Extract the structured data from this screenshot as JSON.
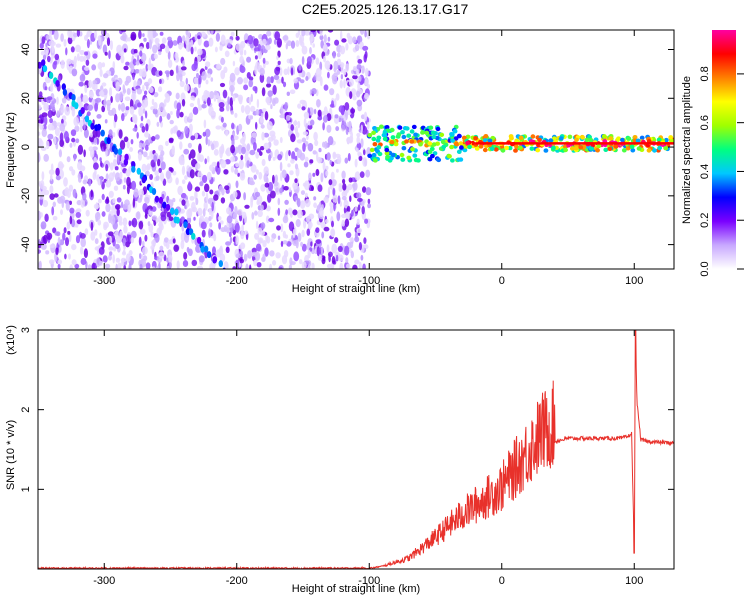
{
  "title": "C2E5.2025.126.13.17.G17",
  "chart_data": [
    {
      "type": "heatmap",
      "xlabel": "Height of straight line (km)",
      "ylabel": "Frequency (Hz)",
      "xlim": [
        -350,
        130
      ],
      "ylim": [
        -50,
        48
      ],
      "xticks": [
        -300,
        -200,
        -100,
        0,
        100
      ],
      "yticks": [
        -40,
        -20,
        0,
        20,
        40
      ],
      "colorbar": {
        "label": "Normalized spectral amplitude",
        "range": [
          0,
          0.98
        ],
        "ticks": [
          0.0,
          0.2,
          0.4,
          0.6,
          0.8
        ],
        "colors": [
          "#ffffff",
          "#c8a8ff",
          "#7a00ff",
          "#0000ff",
          "#00c8ff",
          "#00ff80",
          "#a0ff00",
          "#ffff00",
          "#ff8000",
          "#ff0000",
          "#ff00a0"
        ]
      },
      "noise_region_x": [
        -350,
        -100
      ],
      "diagonal_trace": {
        "x": [
          -350,
          -210
        ],
        "y": [
          35,
          -50
        ]
      },
      "horizontal_band": {
        "x": [
          -100,
          130
        ],
        "y": 1.5
      }
    },
    {
      "type": "line",
      "xlabel": "Height of straight line (km)",
      "ylabel": "SNR (10 * v/v)",
      "y_multiplier_label": "(x10⁴)",
      "xlim": [
        -350,
        130
      ],
      "ylim": [
        0,
        3
      ],
      "xticks": [
        -300,
        -200,
        -100,
        0,
        100
      ],
      "yticks": [
        1,
        2,
        3
      ],
      "color": "#e8312b",
      "series": [
        {
          "x": [
            -350,
            -100,
            -90,
            -70,
            -50,
            -30,
            -10,
            0,
            10,
            20,
            30,
            40,
            50,
            60,
            70,
            80,
            90,
            95,
            98,
            100,
            101,
            102,
            105,
            110,
            130
          ],
          "y": [
            0.01,
            0.01,
            0.03,
            0.12,
            0.35,
            0.6,
            0.8,
            0.9,
            1.1,
            1.3,
            1.5,
            1.6,
            1.64,
            1.64,
            1.64,
            1.64,
            1.64,
            1.66,
            1.7,
            0.2,
            3.0,
            2.1,
            1.62,
            1.6,
            1.58
          ]
        }
      ]
    }
  ]
}
